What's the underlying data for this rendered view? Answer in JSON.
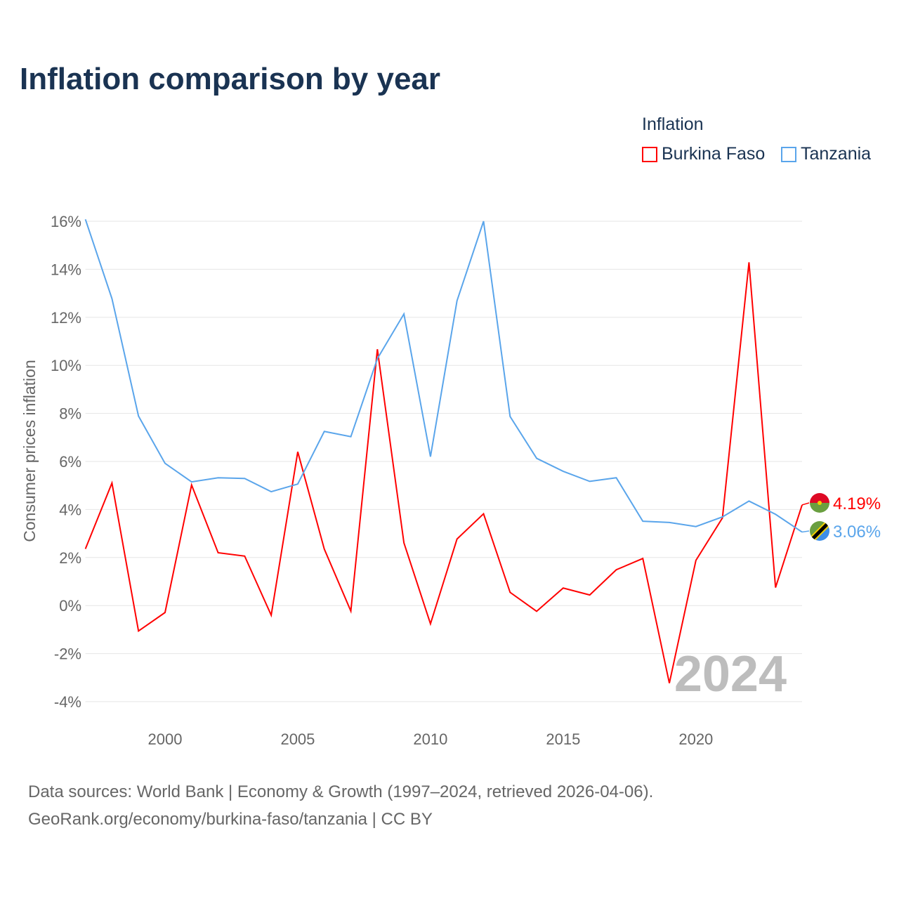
{
  "title": "Inflation comparison by year",
  "legend": {
    "title": "Inflation",
    "items": [
      {
        "name": "Burkina Faso",
        "color": "#ff0000"
      },
      {
        "name": "Tanzania",
        "color": "#5aa5eb"
      }
    ]
  },
  "source": {
    "line1": "Data sources: World Bank | Economy & Growth (1997–2024, retrieved 2026-04-06).",
    "line2": "GeoRank.org/economy/burkina-faso/tanzania | CC BY"
  },
  "chart_data": {
    "type": "line",
    "title": "Inflation comparison by year",
    "ylabel": "Consumer prices inflation",
    "xlabel": "",
    "ylim": [
      -4,
      16
    ],
    "xlim": [
      1997,
      2024
    ],
    "yticks": [
      -4,
      -2,
      0,
      2,
      4,
      6,
      8,
      10,
      12,
      14,
      16
    ],
    "ytick_labels": [
      "-4%",
      "-2%",
      "0%",
      "2%",
      "4%",
      "6%",
      "8%",
      "10%",
      "12%",
      "14%",
      "16%"
    ],
    "xticks": [
      2000,
      2005,
      2010,
      2015,
      2020
    ],
    "xtick_labels": [
      "2000",
      "2005",
      "2010",
      "2015",
      "2020"
    ],
    "year_watermark": "2024",
    "x": [
      1997,
      1998,
      1999,
      2000,
      2001,
      2002,
      2003,
      2004,
      2005,
      2006,
      2007,
      2008,
      2009,
      2010,
      2011,
      2012,
      2013,
      2014,
      2015,
      2016,
      2017,
      2018,
      2019,
      2020,
      2021,
      2022,
      2023,
      2024
    ],
    "series": [
      {
        "name": "Burkina Faso",
        "color": "#ff0000",
        "end_label": "4.19%",
        "values": [
          2.36,
          5.1,
          -1.06,
          -0.29,
          5.02,
          2.2,
          2.06,
          -0.4,
          6.4,
          2.35,
          -0.23,
          10.67,
          2.61,
          -0.76,
          2.77,
          3.82,
          0.55,
          -0.24,
          0.73,
          0.44,
          1.49,
          1.96,
          -3.23,
          1.88,
          3.65,
          14.29,
          0.75,
          4.19
        ]
      },
      {
        "name": "Tanzania",
        "color": "#5aa5eb",
        "end_label": "3.06%",
        "values": [
          16.08,
          12.78,
          7.89,
          5.92,
          5.15,
          5.32,
          5.29,
          4.74,
          5.06,
          7.25,
          7.03,
          10.28,
          12.14,
          6.2,
          12.69,
          16.0,
          7.87,
          6.13,
          5.59,
          5.17,
          5.32,
          3.51,
          3.46,
          3.29,
          3.69,
          4.35,
          3.8,
          3.06
        ]
      }
    ],
    "grid": true,
    "legend_position": "top-right"
  }
}
